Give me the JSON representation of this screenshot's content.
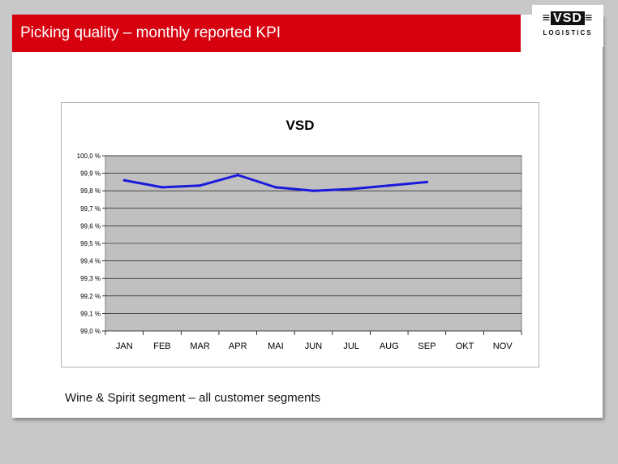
{
  "header": {
    "title": "Picking quality – monthly reported KPI",
    "title_bar_color": "#d7000f"
  },
  "logo": {
    "name": "VSD",
    "sub": "LOGISTICS"
  },
  "caption": "Wine & Spirit segment – all customer segments",
  "chart_data": {
    "type": "line",
    "title": "VSD",
    "xlabel": "",
    "ylabel": "",
    "categories": [
      "JAN",
      "FEB",
      "MAR",
      "APR",
      "MAI",
      "JUN",
      "JUL",
      "AUG",
      "SEP",
      "OKT",
      "NOV"
    ],
    "series": [
      {
        "values": [
          99.86,
          99.82,
          99.83,
          99.89,
          99.82,
          99.8,
          99.81,
          99.83,
          99.85,
          null,
          null
        ],
        "color": "#1a1adb"
      }
    ],
    "ylim": [
      99.0,
      100.0
    ],
    "yticks": [
      "99,0 %",
      "99,1 %",
      "99,2 %",
      "99,3 %",
      "99,4 %",
      "99,5 %",
      "99,6 %",
      "99,7 %",
      "99,8 %",
      "99,9 %",
      "100,0 %"
    ],
    "plot_background": "#c0c0c0",
    "grid": true,
    "legend": "none"
  }
}
